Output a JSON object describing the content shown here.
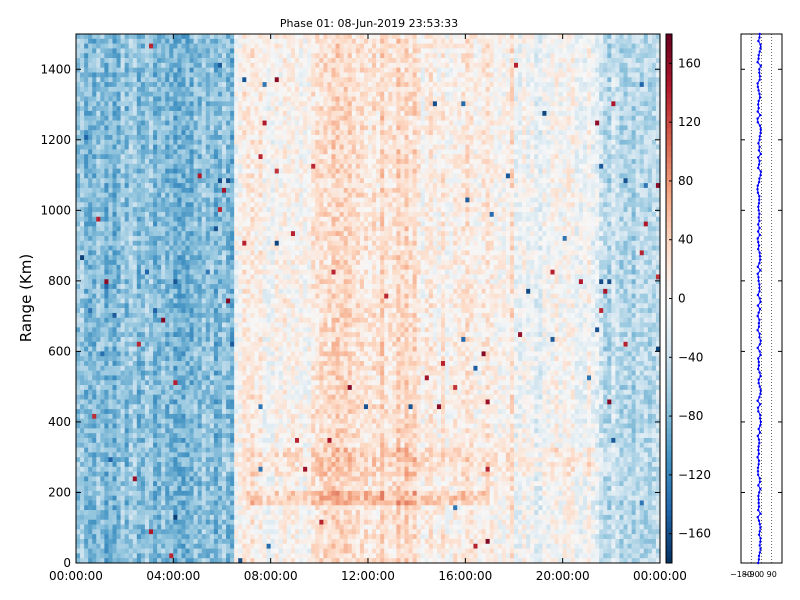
{
  "chart_data": [
    {
      "type": "heatmap",
      "title": "Phase 01: 08-Jun-2019 23:53:33",
      "ylabel": "Range (Km)",
      "xlabel": "",
      "x_ticks": [
        "00:00:00",
        "04:00:00",
        "08:00:00",
        "12:00:00",
        "16:00:00",
        "20:00:00",
        "00:00:00"
      ],
      "x_range_hours": [
        0,
        24
      ],
      "y_ticks": [
        0,
        200,
        400,
        600,
        800,
        1000,
        1200,
        1400
      ],
      "ylim": [
        0,
        1500
      ],
      "colorbar": {
        "ticks": [
          160,
          120,
          80,
          40,
          0,
          -40,
          -80,
          -120,
          -160
        ],
        "range": [
          -180,
          180
        ],
        "colormap": "RdBu_r",
        "colors": [
          "#053061",
          "#2166ac",
          "#4393c3",
          "#92c5de",
          "#d1e5f0",
          "#f7f7f7",
          "#fddbc7",
          "#f4a582",
          "#d6604d",
          "#b2182b",
          "#67001f"
        ]
      },
      "description_bands": [
        {
          "hours": [
            0,
            6.5
          ],
          "mean_value": -75,
          "note": "strongly negative (blue)"
        },
        {
          "hours": [
            6.5,
            10
          ],
          "mean_value": 10
        },
        {
          "hours": [
            10,
            14
          ],
          "mean_value": 30
        },
        {
          "hours": [
            14,
            18
          ],
          "mean_value": 15
        },
        {
          "hours": [
            18,
            21.5
          ],
          "mean_value": -5
        },
        {
          "hours": [
            21.5,
            24
          ],
          "mean_value": -45
        }
      ]
    },
    {
      "type": "scatter",
      "x_ticks": [
        -180,
        -90,
        0,
        90
      ],
      "xlim": [
        -180,
        180
      ],
      "ylim": [
        0,
        1500
      ],
      "color": "#0000ff"
    }
  ]
}
